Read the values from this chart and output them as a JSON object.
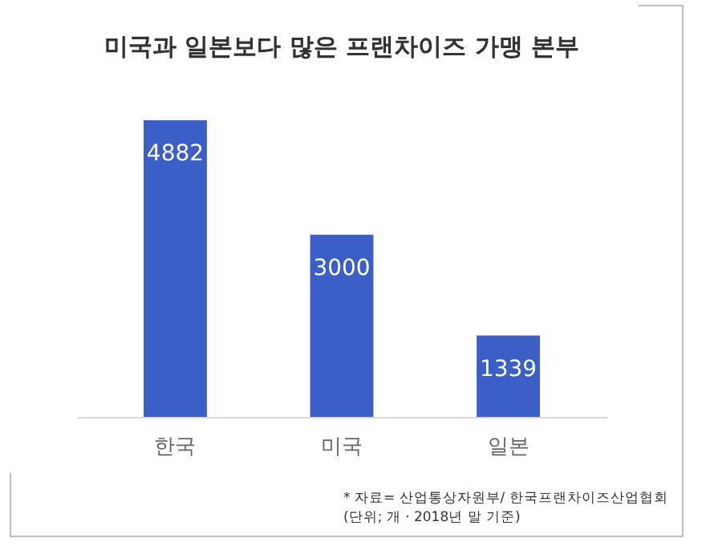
{
  "chart_data": {
    "type": "bar",
    "title": "미국과 일본보다 많은 프랜차이즈 가맹 본부",
    "categories": [
      "한국",
      "미국",
      "일본"
    ],
    "values": [
      4882,
      3000,
      1339
    ],
    "color": "#3b5fc6",
    "data_labels": true,
    "grid": false,
    "annotations": [
      "* 자료= 산업통상자원부/ 한국프랜차이즈산업협회",
      "(단위; 개 · 2018년 말 기준)"
    ]
  }
}
